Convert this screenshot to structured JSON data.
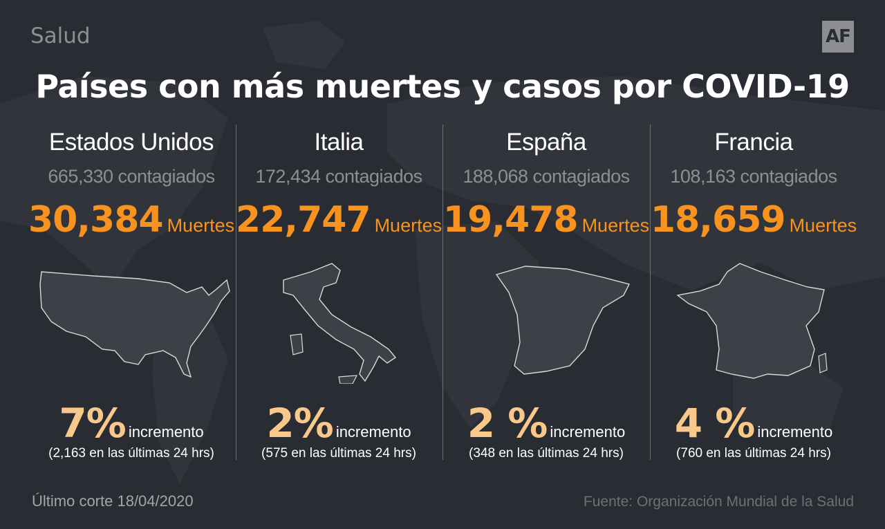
{
  "section": "Salud",
  "logo": "AF",
  "title": "Países con más muertes y casos por COVID-19",
  "deaths_label": "Muertes",
  "increase_label": "incremento",
  "countries": [
    {
      "name": "Estados Unidos",
      "cases": "665,330 contagiados",
      "deaths": "30,384",
      "increase": "7%",
      "increase_detail": "(2,163 en las últimas 24 hrs)",
      "map_icon": "usa-map"
    },
    {
      "name": "Italia",
      "cases": "172,434 contagiados",
      "deaths": "22,747",
      "increase": "2%",
      "increase_detail": "(575 en las últimas 24 hrs)",
      "map_icon": "italy-map"
    },
    {
      "name": "España",
      "cases": "188,068 contagiados",
      "deaths": "19,478",
      "increase": "2 %",
      "increase_detail": "(348 en las últimas 24 hrs)",
      "map_icon": "spain-map"
    },
    {
      "name": "Francia",
      "cases": "108,163 contagiados",
      "deaths": "18,659",
      "increase": "4 %",
      "increase_detail": "(760 en las últimas 24 hrs)",
      "map_icon": "france-map"
    }
  ],
  "footer": {
    "cutoff": "Último corte 18/04/2020",
    "source": "Fuente: Organización Mundial de la Salud"
  },
  "colors": {
    "background": "#2a2c33",
    "deaths": "#f7931e",
    "increase": "#f9c98b",
    "map_fill": "#3e4047"
  }
}
